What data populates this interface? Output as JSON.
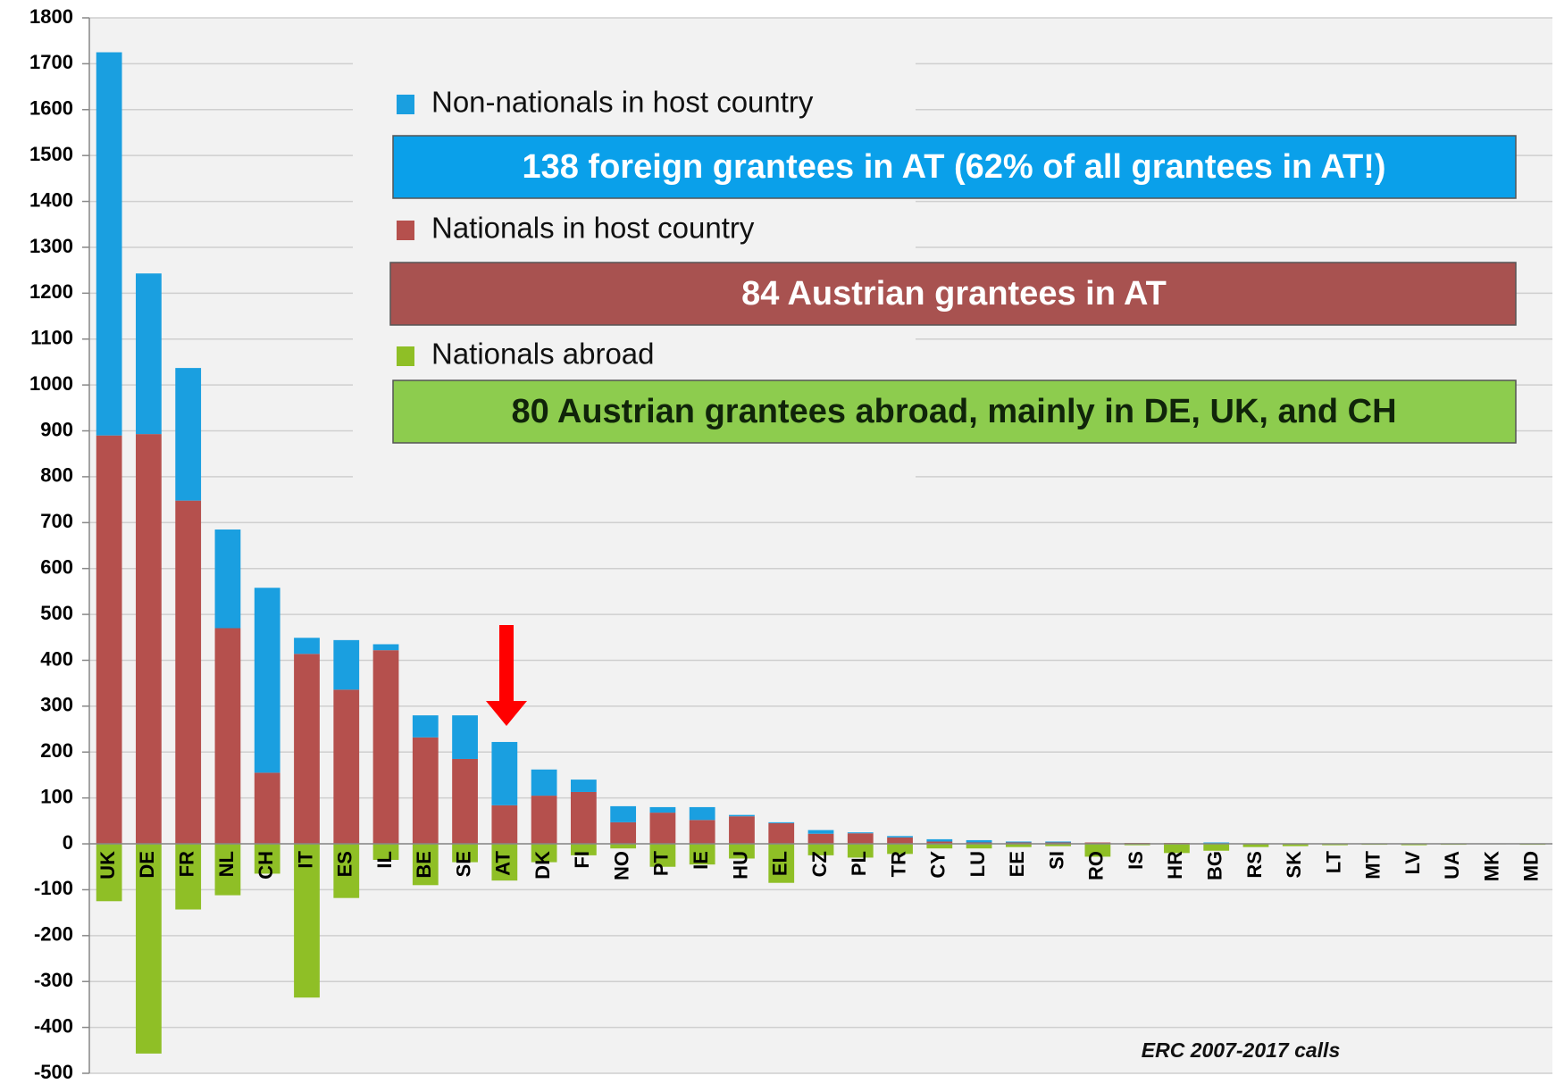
{
  "chart_data": {
    "type": "bar",
    "categories": [
      "UK",
      "DE",
      "FR",
      "NL",
      "CH",
      "IT",
      "ES",
      "IL",
      "BE",
      "SE",
      "AT",
      "DK",
      "FI",
      "NO",
      "PT",
      "IE",
      "HU",
      "EL",
      "CZ",
      "PL",
      "TR",
      "CY",
      "LU",
      "EE",
      "SI",
      "RO",
      "IS",
      "HR",
      "BG",
      "RS",
      "SK",
      "LT",
      "MT",
      "LV",
      "UA",
      "MK",
      "MD"
    ],
    "series": [
      {
        "name": "Non-nationals in host country",
        "color": "#1a9fe0",
        "values": [
          835,
          350,
          289,
          215,
          403,
          35,
          108,
          13,
          48,
          95,
          138,
          57,
          27,
          35,
          12,
          28,
          3,
          2,
          8,
          2,
          3,
          5,
          5,
          2,
          2,
          0,
          0,
          0,
          2,
          0,
          0,
          0,
          0,
          0,
          0,
          0,
          0
        ]
      },
      {
        "name": "Nationals in host country",
        "color": "#b5504d",
        "values": [
          890,
          893,
          748,
          470,
          155,
          414,
          336,
          422,
          232,
          185,
          84,
          105,
          113,
          47,
          68,
          52,
          60,
          45,
          22,
          23,
          14,
          5,
          3,
          3,
          3,
          3,
          2,
          2,
          1,
          0,
          0,
          0,
          0,
          0,
          0,
          0,
          0
        ]
      },
      {
        "name": "Nationals abroad",
        "color": "#8fbf26",
        "values": [
          -125,
          -457,
          -143,
          -112,
          -65,
          -335,
          -118,
          -35,
          -90,
          -40,
          -80,
          -40,
          -25,
          -10,
          -50,
          -45,
          -32,
          -85,
          -25,
          -30,
          -22,
          -10,
          -10,
          -7,
          -5,
          -28,
          -3,
          -20,
          -15,
          -7,
          -5,
          -3,
          -2,
          -3,
          -2,
          -1,
          -2
        ]
      }
    ],
    "annotations": [
      "138 foreign grantees in AT (62% of all grantees in AT!)",
      "84 Austrian grantees in AT",
      "80 Austrian grantees abroad, mainly in DE, UK, and CH",
      "ERC 2007-2017 calls"
    ],
    "ylim": [
      -500,
      1800
    ],
    "yticks": [
      -500,
      -400,
      -300,
      -200,
      -100,
      0,
      100,
      200,
      300,
      400,
      500,
      600,
      700,
      800,
      900,
      1000,
      1100,
      1200,
      1300,
      1400,
      1500,
      1600,
      1700,
      1800
    ],
    "grid": true
  }
}
